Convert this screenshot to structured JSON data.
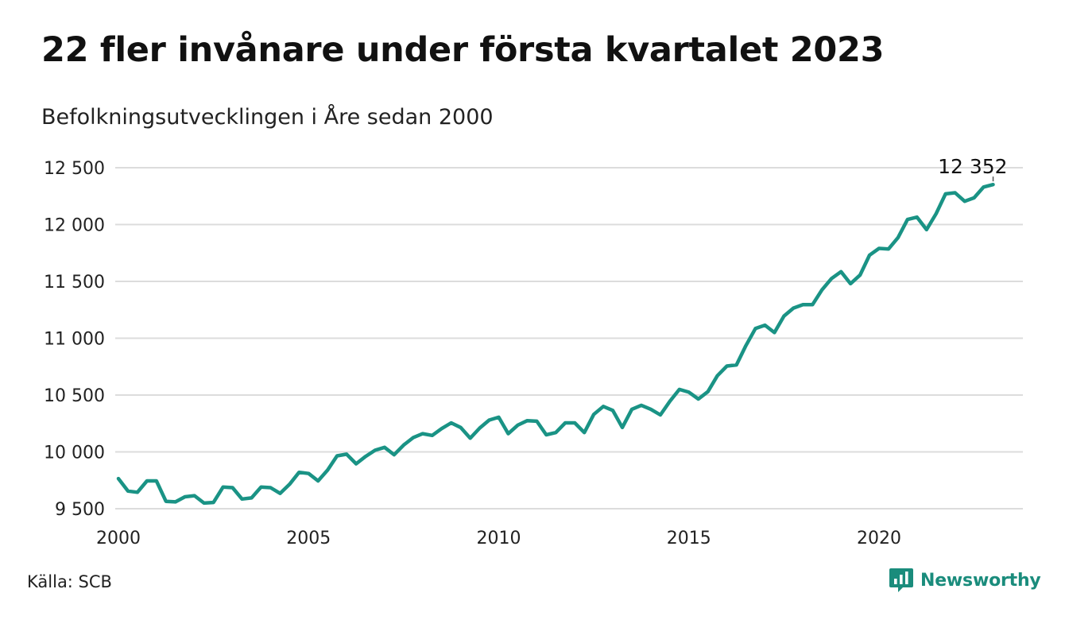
{
  "title": "22 fler invånare under första kvartalet 2023",
  "subtitle": "Befolkningsutvecklingen i Åre sedan 2000",
  "source": "Källa: SCB",
  "logo_text": "Newsworthy",
  "chart_data": {
    "type": "line",
    "color": "#1a9385",
    "x_ticks": [
      "2000",
      "2005",
      "2010",
      "2015",
      "2020"
    ],
    "y_ticks": [
      {
        "value": 9500,
        "label": "9 500"
      },
      {
        "value": 10000,
        "label": "10 000"
      },
      {
        "value": 10500,
        "label": "10 500"
      },
      {
        "value": 11000,
        "label": "11 000"
      },
      {
        "value": 11500,
        "label": "11 500"
      },
      {
        "value": 12000,
        "label": "12 000"
      },
      {
        "value": 12500,
        "label": "12 500"
      }
    ],
    "ylim": [
      9450,
      12550
    ],
    "xlim": [
      2000,
      2024
    ],
    "grid": true,
    "end_label": "12 352",
    "series": [
      {
        "x_start": "2000 Q1",
        "frequency": "quarterly",
        "values": [
          9765,
          9655,
          9645,
          9745,
          9745,
          9565,
          9560,
          9605,
          9615,
          9550,
          9555,
          9690,
          9685,
          9585,
          9595,
          9690,
          9685,
          9635,
          9715,
          9820,
          9810,
          9745,
          9840,
          9965,
          9980,
          9895,
          9960,
          10015,
          10040,
          9975,
          10060,
          10125,
          10160,
          10145,
          10205,
          10255,
          10215,
          10120,
          10210,
          10280,
          10305,
          10160,
          10235,
          10275,
          10270,
          10150,
          10170,
          10255,
          10255,
          10170,
          10330,
          10400,
          10365,
          10215,
          10375,
          10410,
          10375,
          10325,
          10445,
          10550,
          10525,
          10465,
          10530,
          10670,
          10755,
          10765,
          10935,
          11085,
          11115,
          11050,
          11195,
          11265,
          11295,
          11295,
          11425,
          11525,
          11585,
          11480,
          11555,
          11730,
          11790,
          11785,
          11885,
          12045,
          12065,
          11955,
          12095,
          12270,
          12280,
          12205,
          12235,
          12330,
          12352
        ]
      }
    ]
  }
}
